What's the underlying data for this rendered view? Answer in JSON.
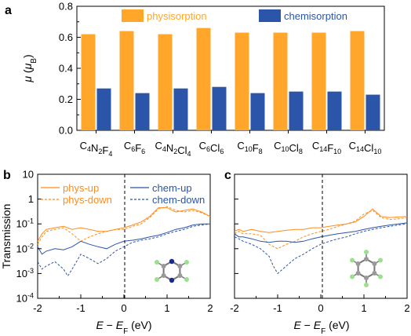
{
  "chart_data": [
    {
      "type": "bar",
      "panel": "a",
      "ylabel": "μ (μB)",
      "ylim": [
        0,
        0.8
      ],
      "yticks": [
        "0.0",
        "0.2",
        "0.4",
        "0.6",
        "0.8"
      ],
      "categories": [
        {
          "base": "C",
          "sub1": "4",
          "mid": "N",
          "sub2": "2",
          "tail": "F",
          "sub3": "4"
        },
        {
          "base": "C",
          "sub1": "6",
          "mid": "F",
          "sub2": "6",
          "tail": "",
          "sub3": ""
        },
        {
          "base": "C",
          "sub1": "4",
          "mid": "N",
          "sub2": "2",
          "tail": "Cl",
          "sub3": "4"
        },
        {
          "base": "C",
          "sub1": "6",
          "mid": "Cl",
          "sub2": "6",
          "tail": "",
          "sub3": ""
        },
        {
          "base": "C",
          "sub1": "10",
          "mid": "F",
          "sub2": "8",
          "tail": "",
          "sub3": ""
        },
        {
          "base": "C",
          "sub1": "10",
          "mid": "Cl",
          "sub2": "8",
          "tail": "",
          "sub3": ""
        },
        {
          "base": "C",
          "sub1": "14",
          "mid": "F",
          "sub2": "10",
          "tail": "",
          "sub3": ""
        },
        {
          "base": "C",
          "sub1": "14",
          "mid": "Cl",
          "sub2": "10",
          "tail": "",
          "sub3": ""
        }
      ],
      "series": [
        {
          "name": "physisorption",
          "color": "#FFA62B",
          "values": [
            0.62,
            0.64,
            0.62,
            0.66,
            0.63,
            0.63,
            0.63,
            0.64
          ]
        },
        {
          "name": "chemisorption",
          "color": "#2B55A8",
          "values": [
            0.27,
            0.24,
            0.27,
            0.28,
            0.24,
            0.25,
            0.25,
            0.23
          ]
        }
      ],
      "legend_position": "top"
    },
    {
      "type": "line",
      "panel": "b",
      "ylabel": "Transmission",
      "xlabel": "E − EF (eV)",
      "yscale": "log",
      "ylim": [
        0.0001,
        10
      ],
      "xlim": [
        -2,
        2
      ],
      "xticks": [
        "-2",
        "-1",
        "0",
        "1",
        "2"
      ],
      "yticks": [
        {
          "b": "10",
          "e": "-4"
        },
        {
          "b": "10",
          "e": "-3"
        },
        {
          "b": "10",
          "e": "-2"
        },
        {
          "b": "10",
          "e": "-1"
        },
        {
          "b": "1",
          "e": ""
        },
        {
          "b": "10",
          "e": ""
        }
      ],
      "legend_position": "top",
      "inset": "pyrazine-like C4N2F4 molecule",
      "series": [
        {
          "name": "phys-up",
          "color": "#FF8C1A",
          "dash": "solid",
          "x": [
            -2.0,
            -1.9,
            -1.8,
            -1.6,
            -1.4,
            -1.2,
            -1.0,
            -0.8,
            -0.6,
            -0.4,
            -0.2,
            0.0,
            0.2,
            0.4,
            0.6,
            0.8,
            1.0,
            1.2,
            1.4,
            1.6,
            1.8,
            2.0
          ],
          "y": [
            0.02,
            0.04,
            0.06,
            0.07,
            0.08,
            0.06,
            0.07,
            0.06,
            0.05,
            0.05,
            0.06,
            0.07,
            0.09,
            0.12,
            0.2,
            0.45,
            0.45,
            0.3,
            0.35,
            0.4,
            0.3,
            0.2
          ]
        },
        {
          "name": "phys-down",
          "color": "#FF8C1A",
          "dash": "dash",
          "x": [
            -2.0,
            -1.9,
            -1.8,
            -1.6,
            -1.4,
            -1.2,
            -1.0,
            -0.8,
            -0.6,
            -0.4,
            -0.2,
            0.0,
            0.2,
            0.4,
            0.6,
            0.8,
            1.0,
            1.2,
            1.4,
            1.6,
            1.8,
            2.0
          ],
          "y": [
            0.015,
            0.03,
            0.05,
            0.06,
            0.07,
            0.04,
            0.02,
            0.03,
            0.04,
            0.05,
            0.06,
            0.06,
            0.08,
            0.1,
            0.18,
            0.4,
            0.5,
            0.35,
            0.3,
            0.35,
            0.28,
            0.2
          ]
        },
        {
          "name": "chem-up",
          "color": "#2B55A8",
          "dash": "solid",
          "x": [
            -2.0,
            -1.9,
            -1.8,
            -1.6,
            -1.4,
            -1.2,
            -1.0,
            -0.8,
            -0.6,
            -0.4,
            -0.2,
            0.0,
            0.2,
            0.4,
            0.6,
            0.8,
            1.0,
            1.2,
            1.4,
            1.6,
            1.8,
            2.0
          ],
          "y": [
            0.012,
            0.006,
            0.008,
            0.01,
            0.009,
            0.012,
            0.02,
            0.015,
            0.012,
            0.01,
            0.015,
            0.02,
            0.022,
            0.025,
            0.03,
            0.035,
            0.045,
            0.06,
            0.07,
            0.09,
            0.1,
            0.1
          ]
        },
        {
          "name": "chem-down",
          "color": "#2B55A8",
          "dash": "dash",
          "x": [
            -2.0,
            -1.9,
            -1.8,
            -1.6,
            -1.4,
            -1.3,
            -1.2,
            -1.1,
            -1.0,
            -0.8,
            -0.6,
            -0.4,
            -0.2,
            0.0,
            0.2,
            0.4,
            0.6,
            0.8,
            1.0,
            1.2,
            1.4,
            1.6,
            1.8,
            2.0
          ],
          "y": [
            0.003,
            0.0015,
            0.002,
            0.003,
            0.0015,
            0.0008,
            0.0015,
            0.003,
            0.006,
            0.004,
            0.0025,
            0.004,
            0.008,
            0.012,
            0.018,
            0.022,
            0.025,
            0.03,
            0.04,
            0.05,
            0.06,
            0.08,
            0.09,
            0.1
          ]
        }
      ]
    },
    {
      "type": "line",
      "panel": "c",
      "xlabel": "E − EF (eV)",
      "yscale": "log",
      "ylim": [
        0.0001,
        10
      ],
      "xlim": [
        -2,
        2
      ],
      "xticks": [
        "-2",
        "-1",
        "0",
        "1",
        "2"
      ],
      "inset": "benzene-like C6F6 molecule",
      "series": [
        {
          "name": "phys-up",
          "color": "#FF8C1A",
          "dash": "solid",
          "x": [
            -2.0,
            -1.9,
            -1.8,
            -1.6,
            -1.4,
            -1.2,
            -1.0,
            -0.8,
            -0.6,
            -0.4,
            -0.2,
            0.0,
            0.2,
            0.4,
            0.6,
            0.8,
            1.0,
            1.2,
            1.4,
            1.6,
            1.8,
            2.0
          ],
          "y": [
            0.05,
            0.06,
            0.05,
            0.06,
            0.05,
            0.045,
            0.05,
            0.055,
            0.06,
            0.06,
            0.07,
            0.07,
            0.08,
            0.09,
            0.1,
            0.12,
            0.2,
            0.4,
            0.2,
            0.18,
            0.19,
            0.2
          ]
        },
        {
          "name": "phys-down",
          "color": "#FF8C1A",
          "dash": "dash",
          "x": [
            -2.0,
            -1.9,
            -1.8,
            -1.6,
            -1.4,
            -1.2,
            -1.0,
            -0.8,
            -0.6,
            -0.4,
            -0.2,
            0.0,
            0.2,
            0.4,
            0.6,
            0.8,
            1.0,
            1.2,
            1.4,
            1.6,
            1.8,
            2.0
          ],
          "y": [
            0.04,
            0.05,
            0.04,
            0.04,
            0.035,
            0.015,
            0.01,
            0.015,
            0.02,
            0.03,
            0.04,
            0.05,
            0.06,
            0.08,
            0.1,
            0.13,
            0.25,
            0.35,
            0.18,
            0.15,
            0.16,
            0.18
          ]
        },
        {
          "name": "chem-up",
          "color": "#2B55A8",
          "dash": "solid",
          "x": [
            -2.0,
            -1.9,
            -1.8,
            -1.6,
            -1.4,
            -1.2,
            -1.0,
            -0.8,
            -0.6,
            -0.4,
            -0.2,
            0.0,
            0.2,
            0.4,
            0.6,
            0.8,
            1.0,
            1.2,
            1.4,
            1.6,
            1.8,
            2.0
          ],
          "y": [
            0.04,
            0.03,
            0.03,
            0.025,
            0.02,
            0.018,
            0.02,
            0.02,
            0.018,
            0.02,
            0.025,
            0.03,
            0.035,
            0.04,
            0.045,
            0.05,
            0.06,
            0.07,
            0.08,
            0.09,
            0.1,
            0.11
          ]
        },
        {
          "name": "chem-down",
          "color": "#2B55A8",
          "dash": "dash",
          "x": [
            -2.0,
            -1.9,
            -1.8,
            -1.6,
            -1.4,
            -1.2,
            -1.1,
            -1.0,
            -0.8,
            -0.6,
            -0.4,
            -0.2,
            0.0,
            0.2,
            0.4,
            0.6,
            0.8,
            1.0,
            1.2,
            1.4,
            1.6,
            1.8,
            2.0
          ],
          "y": [
            0.03,
            0.025,
            0.02,
            0.015,
            0.01,
            0.005,
            0.002,
            0.001,
            0.002,
            0.004,
            0.006,
            0.01,
            0.015,
            0.02,
            0.025,
            0.03,
            0.04,
            0.05,
            0.06,
            0.07,
            0.08,
            0.09,
            0.1
          ]
        }
      ]
    }
  ],
  "labels": {
    "panel_a": "a",
    "panel_b": "b",
    "panel_c": "c",
    "a_ylabel_mu": "μ",
    "a_ylabel_open": " (",
    "a_ylabel_unit": "μ",
    "a_ylabel_unit_sub": "B",
    "a_ylabel_close": ")",
    "legend_phys": "physisorption",
    "legend_chem": "chemisorption",
    "b_ylabel": "Transmission",
    "x_E": "E",
    "x_minus": " − ",
    "x_EF": "E",
    "x_F": "F",
    "x_unit": " (eV)",
    "leg_phys_up": "phys-up",
    "leg_phys_down": "phys-down",
    "leg_chem_up": "chem-up",
    "leg_chem_down": "chem-down"
  },
  "colors": {
    "phys": "#FFA62B",
    "chem": "#2B55A8",
    "line_orange": "#FF8C1A",
    "line_blue": "#2B55A8"
  }
}
